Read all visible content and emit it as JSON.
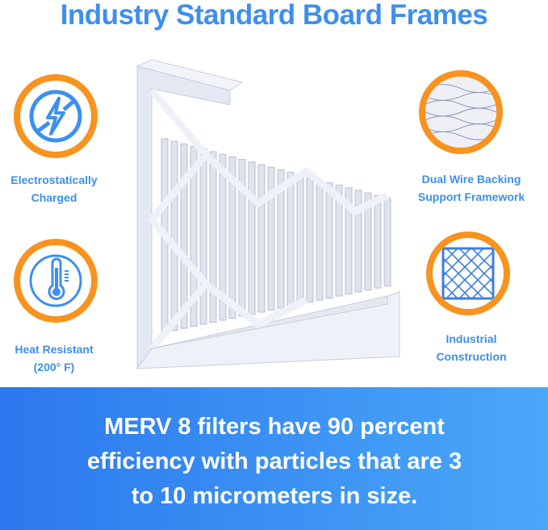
{
  "title": "Industry Standard Board Frames",
  "features": [
    {
      "label_lines": [
        "Electrostatically",
        "Charged"
      ],
      "icon": "lightning-prohibited-icon"
    },
    {
      "label_lines": [
        "Heat Resistant",
        "(200° F)"
      ],
      "icon": "thermometer-icon"
    },
    {
      "label_lines": [
        "Dual Wire Backing",
        "Support Framework"
      ],
      "icon": "wire-mesh-photo"
    },
    {
      "label_lines": [
        "Industrial",
        "Construction"
      ],
      "icon": "grid-mesh-icon"
    }
  ],
  "banner": {
    "lines": [
      "MERV 8 filters have 90 percent",
      "efficiency with particles that are 3",
      "to 10 micrometers in size."
    ]
  },
  "colors": {
    "accent_blue": "#3d8fef",
    "ring_orange": "#f7931e"
  }
}
